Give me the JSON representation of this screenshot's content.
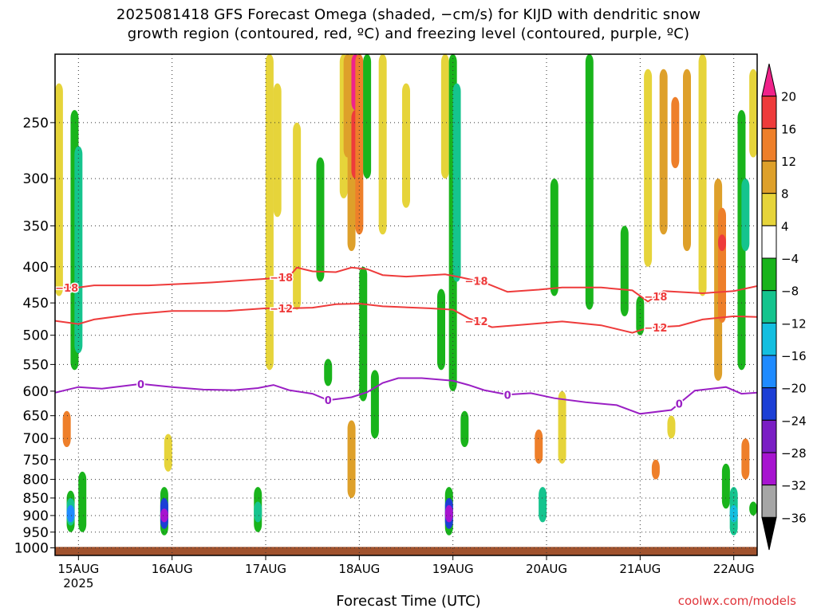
{
  "title_line1": "2025081418 GFS Forecast Omega (shaded, −cm/s) for KIJD with dendritic snow",
  "title_line2": "growth region (contoured, red, ºC) and freezing level (contoured, purple, ºC)",
  "credit": "coolwx.com/models",
  "chart_data": {
    "type": "heatmap",
    "xlabel": "Forecast Time (UTC)",
    "x_ticks": [
      "15AUG",
      "16AUG",
      "17AUG",
      "18AUG",
      "19AUG",
      "20AUG",
      "21AUG",
      "22AUG"
    ],
    "x_tick_hours": [
      6,
      30,
      54,
      78,
      102,
      126,
      150,
      174
    ],
    "x_sublabel": "2025",
    "xlim_hours": [
      0,
      180
    ],
    "ylabel": "",
    "y_ticks": [
      250,
      300,
      350,
      400,
      450,
      500,
      550,
      600,
      650,
      700,
      750,
      800,
      850,
      900,
      950,
      1000
    ],
    "ylim_hPa": [
      200,
      1025
    ],
    "y_scale": "log-pressure",
    "grid": true,
    "ground_level_hPa": 997,
    "colorbar": {
      "labels": [
        "20",
        "16",
        "12",
        "8",
        "4",
        "−4",
        "−8",
        "−12",
        "−16",
        "−20",
        "−24",
        "−28",
        "−32",
        "−36"
      ],
      "colors": [
        "#f0238a",
        "#ee3b3b",
        "#ee7f2a",
        "#dea02a",
        "#e6d43a",
        "#ffffff",
        "#19b41b",
        "#15c48e",
        "#14bfe0",
        "#1f8bff",
        "#1c3fd6",
        "#7a1ec4",
        "#a714d0",
        "#a6a6a6",
        "#000000"
      ]
    },
    "contours": [
      {
        "label": "−18",
        "color": "#ee3b3b",
        "points": [
          [
            0,
            428
          ],
          [
            6,
            428
          ],
          [
            10,
            425
          ],
          [
            24,
            425
          ],
          [
            40,
            421
          ],
          [
            54,
            416
          ],
          [
            60,
            413
          ],
          [
            62,
            401
          ],
          [
            66,
            406
          ],
          [
            72,
            407
          ],
          [
            76,
            401
          ],
          [
            80,
            403
          ],
          [
            84,
            411
          ],
          [
            90,
            413
          ],
          [
            100,
            410
          ],
          [
            104,
            414
          ],
          [
            110,
            421
          ],
          [
            116,
            434
          ],
          [
            124,
            431
          ],
          [
            130,
            428
          ],
          [
            140,
            428
          ],
          [
            148,
            432
          ],
          [
            152,
            448
          ],
          [
            156,
            433
          ],
          [
            166,
            436
          ],
          [
            174,
            433
          ],
          [
            180,
            426
          ]
        ],
        "label_hours": [
          3,
          58,
          108,
          154
        ]
      },
      {
        "label": "−12",
        "color": "#ee3b3b",
        "points": [
          [
            0,
            477
          ],
          [
            6,
            482
          ],
          [
            10,
            475
          ],
          [
            20,
            467
          ],
          [
            30,
            462
          ],
          [
            44,
            462
          ],
          [
            54,
            458
          ],
          [
            60,
            458
          ],
          [
            66,
            457
          ],
          [
            72,
            452
          ],
          [
            78,
            451
          ],
          [
            84,
            455
          ],
          [
            96,
            458
          ],
          [
            102,
            460
          ],
          [
            106,
            473
          ],
          [
            112,
            487
          ],
          [
            122,
            482
          ],
          [
            130,
            478
          ],
          [
            140,
            484
          ],
          [
            148,
            496
          ],
          [
            152,
            488
          ],
          [
            160,
            485
          ],
          [
            166,
            475
          ],
          [
            174,
            470
          ],
          [
            180,
            471
          ]
        ],
        "label_hours": [
          58,
          108,
          154
        ]
      },
      {
        "label": "0",
        "color": "#9a1fc4",
        "points": [
          [
            0,
            603
          ],
          [
            6,
            592
          ],
          [
            12,
            595
          ],
          [
            22,
            586
          ],
          [
            30,
            592
          ],
          [
            38,
            597
          ],
          [
            46,
            598
          ],
          [
            52,
            594
          ],
          [
            56,
            588
          ],
          [
            60,
            598
          ],
          [
            66,
            605
          ],
          [
            70,
            618
          ],
          [
            76,
            612
          ],
          [
            80,
            602
          ],
          [
            84,
            584
          ],
          [
            88,
            575
          ],
          [
            94,
            575
          ],
          [
            102,
            580
          ],
          [
            106,
            588
          ],
          [
            110,
            598
          ],
          [
            116,
            607
          ],
          [
            122,
            604
          ],
          [
            128,
            614
          ],
          [
            136,
            622
          ],
          [
            144,
            628
          ],
          [
            150,
            646
          ],
          [
            158,
            638
          ],
          [
            164,
            599
          ],
          [
            172,
            592
          ],
          [
            176,
            605
          ],
          [
            180,
            603
          ]
        ],
        "label_hours": [
          22,
          70,
          116,
          160
        ]
      }
    ],
    "shading_cells": [
      {
        "t": 1,
        "p0": 220,
        "p1": 440,
        "v": 4
      },
      {
        "t": 5,
        "p0": 240,
        "p1": 560,
        "v": -8
      },
      {
        "t": 6,
        "p0": 270,
        "p1": 530,
        "v": -12
      },
      {
        "t": 4,
        "p0": 830,
        "p1": 950,
        "v": -8
      },
      {
        "t": 4,
        "p0": 850,
        "p1": 930,
        "v": -12
      },
      {
        "t": 4,
        "p0": 870,
        "p1": 920,
        "v": -20
      },
      {
        "t": 3,
        "p0": 640,
        "p1": 720,
        "v": 12
      },
      {
        "t": 7,
        "p0": 780,
        "p1": 950,
        "v": -8
      },
      {
        "t": 28,
        "p0": 820,
        "p1": 960,
        "v": -8
      },
      {
        "t": 28,
        "p0": 850,
        "p1": 940,
        "v": -24
      },
      {
        "t": 28,
        "p0": 880,
        "p1": 920,
        "v": -32
      },
      {
        "t": 29,
        "p0": 690,
        "p1": 780,
        "v": 4
      },
      {
        "t": 52,
        "p0": 820,
        "p1": 950,
        "v": -8
      },
      {
        "t": 52,
        "p0": 860,
        "p1": 920,
        "v": -12
      },
      {
        "t": 55,
        "p0": 200,
        "p1": 560,
        "v": 4
      },
      {
        "t": 57,
        "p0": 220,
        "p1": 340,
        "v": 4
      },
      {
        "t": 62,
        "p0": 250,
        "p1": 460,
        "v": 4
      },
      {
        "t": 68,
        "p0": 280,
        "p1": 420,
        "v": -8
      },
      {
        "t": 70,
        "p0": 540,
        "p1": 590,
        "v": -8
      },
      {
        "t": 74,
        "p0": 200,
        "p1": 320,
        "v": 4
      },
      {
        "t": 75,
        "p0": 200,
        "p1": 280,
        "v": 8
      },
      {
        "t": 76,
        "p0": 200,
        "p1": 380,
        "v": 8
      },
      {
        "t": 77,
        "p0": 200,
        "p1": 240,
        "v": 20
      },
      {
        "t": 77,
        "p0": 240,
        "p1": 300,
        "v": 16
      },
      {
        "t": 78,
        "p0": 200,
        "p1": 360,
        "v": 12
      },
      {
        "t": 76,
        "p0": 660,
        "p1": 850,
        "v": 8
      },
      {
        "t": 79,
        "p0": 400,
        "p1": 620,
        "v": -8
      },
      {
        "t": 80,
        "p0": 200,
        "p1": 300,
        "v": -8
      },
      {
        "t": 82,
        "p0": 560,
        "p1": 700,
        "v": -8
      },
      {
        "t": 84,
        "p0": 200,
        "p1": 360,
        "v": 4
      },
      {
        "t": 90,
        "p0": 220,
        "p1": 330,
        "v": 4
      },
      {
        "t": 100,
        "p0": 200,
        "p1": 300,
        "v": 4
      },
      {
        "t": 102,
        "p0": 200,
        "p1": 600,
        "v": -8
      },
      {
        "t": 103,
        "p0": 220,
        "p1": 420,
        "v": -12
      },
      {
        "t": 101,
        "p0": 820,
        "p1": 960,
        "v": -8
      },
      {
        "t": 101,
        "p0": 850,
        "p1": 940,
        "v": -24
      },
      {
        "t": 101,
        "p0": 870,
        "p1": 920,
        "v": -32
      },
      {
        "t": 99,
        "p0": 430,
        "p1": 560,
        "v": -8
      },
      {
        "t": 105,
        "p0": 640,
        "p1": 720,
        "v": -8
      },
      {
        "t": 125,
        "p0": 820,
        "p1": 920,
        "v": -12
      },
      {
        "t": 124,
        "p0": 680,
        "p1": 760,
        "v": 12
      },
      {
        "t": 128,
        "p0": 300,
        "p1": 440,
        "v": -8
      },
      {
        "t": 130,
        "p0": 600,
        "p1": 760,
        "v": 4
      },
      {
        "t": 137,
        "p0": 200,
        "p1": 460,
        "v": -8
      },
      {
        "t": 146,
        "p0": 350,
        "p1": 470,
        "v": -8
      },
      {
        "t": 150,
        "p0": 440,
        "p1": 500,
        "v": -8
      },
      {
        "t": 158,
        "p0": 650,
        "p1": 700,
        "v": 4
      },
      {
        "t": 154,
        "p0": 750,
        "p1": 800,
        "v": 12
      },
      {
        "t": 152,
        "p0": 210,
        "p1": 400,
        "v": 4
      },
      {
        "t": 156,
        "p0": 210,
        "p1": 360,
        "v": 8
      },
      {
        "t": 159,
        "p0": 230,
        "p1": 290,
        "v": 12
      },
      {
        "t": 162,
        "p0": 210,
        "p1": 380,
        "v": 8
      },
      {
        "t": 166,
        "p0": 200,
        "p1": 440,
        "v": 4
      },
      {
        "t": 170,
        "p0": 300,
        "p1": 580,
        "v": 8
      },
      {
        "t": 171,
        "p0": 330,
        "p1": 480,
        "v": 12
      },
      {
        "t": 171,
        "p0": 360,
        "p1": 380,
        "v": 16
      },
      {
        "t": 172,
        "p0": 760,
        "p1": 880,
        "v": -8
      },
      {
        "t": 174,
        "p0": 820,
        "p1": 960,
        "v": -12
      },
      {
        "t": 174,
        "p0": 870,
        "p1": 920,
        "v": -16
      },
      {
        "t": 177,
        "p0": 700,
        "p1": 800,
        "v": 12
      },
      {
        "t": 176,
        "p0": 240,
        "p1": 560,
        "v": -8
      },
      {
        "t": 177,
        "p0": 300,
        "p1": 380,
        "v": -12
      },
      {
        "t": 179,
        "p0": 860,
        "p1": 900,
        "v": -8
      },
      {
        "t": 179,
        "p0": 210,
        "p1": 280,
        "v": 4
      }
    ]
  }
}
